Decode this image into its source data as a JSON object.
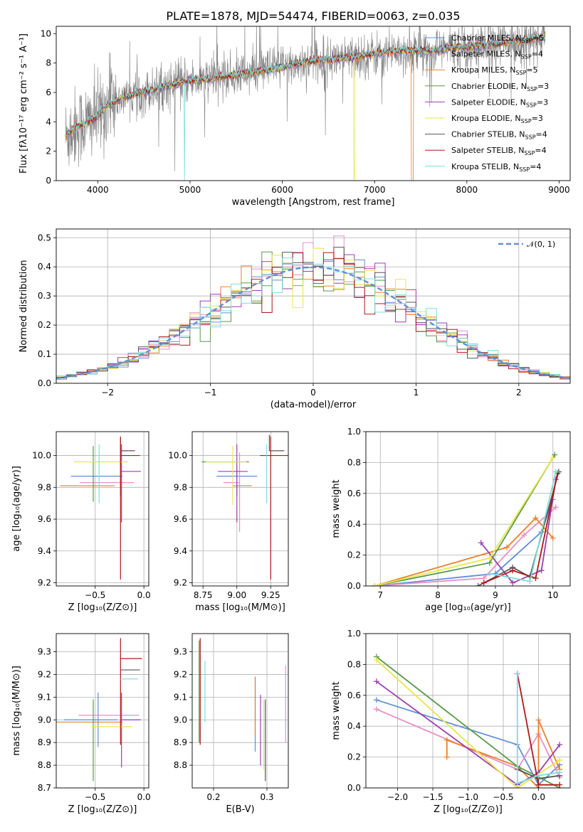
{
  "figure": {
    "title": "PLATE=1878, MJD=54474, FIBERID=0063, z=0.035"
  },
  "palette": {
    "chabrier_miles": "#5f8fd6",
    "salpeter_miles": "#e88fc6",
    "kroupa_miles": "#e8802a",
    "chabrier_elodie": "#5a9a4a",
    "salpeter_elodie": "#9b3fb0",
    "kroupa_elodie": "#e6e84a",
    "chabrier_stelib": "#555555",
    "salpeter_stelib": "#b01818",
    "kroupa_stelib": "#7fdcdc",
    "data": "#808080",
    "normal": "#5f8fd6",
    "grid": "#b0b0b0"
  },
  "chart_data": [
    {
      "id": "spectrum",
      "type": "line",
      "title": "PLATE=1878, MJD=54474, FIBERID=0063, z=0.035",
      "xlabel": "wavelength [Angstrom, rest frame]",
      "ylabel": "Flux [fλ10⁻¹⁷ erg cm⁻² s⁻¹ A⁻¹]",
      "xlim": [
        3550,
        9120
      ],
      "ylim": [
        0,
        10.5
      ],
      "xticks": [
        4000,
        5000,
        6000,
        7000,
        8000,
        9000
      ],
      "yticks": [
        0,
        2,
        4,
        6,
        8,
        10
      ],
      "grid": false,
      "legend_position": "top-right",
      "continuum": {
        "x": [
          3650,
          3750,
          3900,
          4000,
          4100,
          4200,
          4400,
          4600,
          4800,
          5000,
          5200,
          5400,
          5600,
          5800,
          6000,
          6200,
          6400,
          6600,
          6800,
          7000,
          7200,
          7400,
          7600,
          7800,
          8000,
          8200,
          8400,
          8600,
          8800,
          8850
        ],
        "y": [
          3.0,
          3.6,
          4.0,
          4.4,
          5.1,
          5.4,
          5.9,
          6.2,
          6.5,
          6.8,
          6.9,
          7.1,
          7.3,
          7.5,
          7.7,
          8.0,
          8.2,
          8.3,
          8.4,
          8.6,
          8.8,
          8.9,
          8.8,
          9.0,
          9.1,
          9.2,
          9.4,
          9.5,
          9.7,
          9.8
        ]
      },
      "dropouts": [
        {
          "series": "Kroupa STELIB",
          "x": 4940
        },
        {
          "series": "Kroupa ELODIE",
          "x": 6780
        },
        {
          "series": "Kroupa MILES",
          "x": 7400
        }
      ],
      "series": [
        {
          "name": "Chabrier MILES, N",
          "sub": "SSP",
          "suffix": "=5",
          "key": "chabrier_miles"
        },
        {
          "name": "Salpeter MILES, N",
          "sub": "SSP",
          "suffix": "=4",
          "key": "salpeter_miles"
        },
        {
          "name": "Kroupa MILES, N",
          "sub": "SSP",
          "suffix": "=5",
          "key": "kroupa_miles"
        },
        {
          "name": "Chabrier ELODIE, N",
          "sub": "SSP",
          "suffix": "=3",
          "key": "chabrier_elodie"
        },
        {
          "name": "Salpeter ELODIE, N",
          "sub": "SSP",
          "suffix": "=3",
          "key": "salpeter_elodie"
        },
        {
          "name": "Kroupa ELODIE, N",
          "sub": "SSP",
          "suffix": "=3",
          "key": "kroupa_elodie"
        },
        {
          "name": "Chabrier STELIB, N",
          "sub": "SSP",
          "suffix": "=4",
          "key": "chabrier_stelib"
        },
        {
          "name": "Salpeter STELIB, N",
          "sub": "SSP",
          "suffix": "=4",
          "key": "salpeter_stelib"
        },
        {
          "name": "Kroupa STELIB, N",
          "sub": "SSP",
          "suffix": "=4",
          "key": "kroupa_stelib"
        }
      ]
    },
    {
      "id": "residuals",
      "type": "histogram",
      "xlabel": "(data-model)/error",
      "ylabel": "Normed distribution",
      "xlim": [
        -2.5,
        2.5
      ],
      "ylim": [
        0,
        0.53
      ],
      "xticks": [
        -2,
        -1,
        0,
        1,
        2
      ],
      "yticks": [
        0.0,
        0.1,
        0.2,
        0.3,
        0.4,
        0.5
      ],
      "grid": true,
      "legend": "𝒩(0, 1)",
      "legend_position": "top-right",
      "bin_edges_range": [
        -2.5,
        2.5
      ],
      "n_bins": 50
    },
    {
      "id": "age-vs-z",
      "type": "errorbar",
      "xlabel": "Z [log₁₀(Z/Z⊙)]",
      "ylabel": "age  [log₁₀(age/yr)]",
      "xlim": [
        -0.9,
        0.05
      ],
      "ylim": [
        9.18,
        10.15
      ],
      "xticks": [
        -0.5,
        0.0
      ],
      "yticks": [
        9.2,
        9.4,
        9.6,
        9.8,
        10.0
      ],
      "grid": true,
      "points": [
        {
          "key": "chabrier_miles",
          "x": -0.37,
          "xerr": [
            0.38,
            0.15
          ],
          "y": 9.87,
          "yerr": [
            0.0,
            0.0
          ]
        },
        {
          "key": "salpeter_miles",
          "x": -0.3,
          "xerr": [
            0.36,
            0.2
          ],
          "y": 9.83,
          "yerr": [
            0.0,
            0.0
          ]
        },
        {
          "key": "kroupa_miles",
          "x": -0.48,
          "xerr": [
            0.38,
            0.18
          ],
          "y": 9.81,
          "yerr": [
            0.0,
            0.0
          ]
        },
        {
          "key": "chabrier_elodie",
          "x": -0.52,
          "xerr": [
            0.0,
            0.0
          ],
          "y": 9.96,
          "yerr": [
            0.25,
            0.1
          ]
        },
        {
          "key": "salpeter_elodie",
          "x": -0.23,
          "xerr": [
            0.0,
            0.2
          ],
          "y": 9.9,
          "yerr": [
            0.32,
            0.17
          ]
        },
        {
          "key": "kroupa_elodie",
          "x": -0.42,
          "xerr": [
            0.3,
            0.26
          ],
          "y": 9.96,
          "yerr": [
            0.0,
            0.0
          ]
        },
        {
          "key": "chabrier_stelib",
          "x": -0.24,
          "xerr": [
            0.0,
            0.15
          ],
          "y": 10.03,
          "yerr": [
            0.28,
            0.08
          ]
        },
        {
          "key": "salpeter_stelib",
          "x": -0.24,
          "xerr": [
            0.0,
            0.2
          ],
          "y": 10.0,
          "yerr": [
            0.78,
            0.12
          ]
        },
        {
          "key": "kroupa_stelib",
          "x": -0.46,
          "xerr": [
            0.0,
            0.0
          ],
          "y": 9.97,
          "yerr": [
            0.27,
            0.1
          ]
        }
      ]
    },
    {
      "id": "age-vs-mass",
      "type": "errorbar",
      "xlabel": "mass [log₁₀(M/M⊙)]",
      "ylabel": "",
      "xlim": [
        8.67,
        9.38
      ],
      "ylim": [
        9.18,
        10.15
      ],
      "xticks": [
        8.75,
        9.0,
        9.25
      ],
      "yticks": [
        9.2,
        9.4,
        9.6,
        9.8,
        10.0
      ],
      "grid": true,
      "points": [
        {
          "key": "chabrier_miles",
          "x": 9.0,
          "xerr": [
            0.15,
            0.15
          ],
          "y": 9.87,
          "yerr": [
            0.12,
            0.05
          ]
        },
        {
          "key": "salpeter_miles",
          "x": 9.02,
          "xerr": [
            0.12,
            0.0
          ],
          "y": 9.83,
          "yerr": [
            0.31,
            0.19
          ]
        },
        {
          "key": "kroupa_miles",
          "x": 8.97,
          "xerr": [
            0.0,
            0.14
          ],
          "y": 9.81,
          "yerr": [
            0.0,
            0.0
          ]
        },
        {
          "key": "chabrier_elodie",
          "x": 8.94,
          "xerr": [
            0.2,
            0.15
          ],
          "y": 9.96,
          "yerr": [
            0.0,
            0.0
          ]
        },
        {
          "key": "salpeter_elodie",
          "x": 9.0,
          "xerr": [
            0.14,
            0.08
          ],
          "y": 9.9,
          "yerr": [
            0.32,
            0.17
          ]
        },
        {
          "key": "kroupa_elodie",
          "x": 8.97,
          "xerr": [
            0.2,
            0.1
          ],
          "y": 9.96,
          "yerr": [
            0.27,
            0.1
          ]
        },
        {
          "key": "chabrier_stelib",
          "x": 9.24,
          "xerr": [
            0.0,
            0.11
          ],
          "y": 10.03,
          "yerr": [
            0.0,
            0.1
          ]
        },
        {
          "key": "salpeter_stelib",
          "x": 9.25,
          "xerr": [
            0.08,
            0.13
          ],
          "y": 10.0,
          "yerr": [
            0.78,
            0.12
          ]
        },
        {
          "key": "kroupa_stelib",
          "x": 9.22,
          "xerr": [
            0.0,
            0.0
          ],
          "y": 9.97,
          "yerr": [
            0.27,
            0.1
          ]
        }
      ]
    },
    {
      "id": "weight-vs-age",
      "type": "line",
      "xlabel": "age  [log₁₀(age/yr)]",
      "ylabel": "mass weight",
      "xlim": [
        6.75,
        10.3
      ],
      "ylim": [
        0,
        1.0
      ],
      "xticks": [
        7,
        8,
        9,
        10
      ],
      "yticks": [
        0.0,
        0.2,
        0.4,
        0.6,
        0.8,
        1.0
      ],
      "grid": true,
      "series": [
        {
          "key": "chabrier_miles",
          "x": [
            6.9,
            9.0,
            9.8,
            10.0
          ],
          "y": [
            0.0,
            0.08,
            0.35,
            0.56
          ]
        },
        {
          "key": "salpeter_miles",
          "x": [
            6.9,
            8.8,
            9.5,
            10.05
          ],
          "y": [
            0.0,
            0.05,
            0.33,
            0.51
          ]
        },
        {
          "key": "kroupa_miles",
          "x": [
            6.9,
            9.2,
            9.7,
            10.0
          ],
          "y": [
            0.0,
            0.25,
            0.44,
            0.31
          ]
        },
        {
          "key": "chabrier_elodie",
          "x": [
            6.9,
            8.9,
            10.03
          ],
          "y": [
            0.0,
            0.15,
            0.85
          ]
        },
        {
          "key": "salpeter_elodie",
          "x": [
            8.75,
            9.3,
            9.8,
            10.05
          ],
          "y": [
            0.28,
            0.02,
            0.1,
            0.69
          ]
        },
        {
          "key": "kroupa_elodie",
          "x": [
            6.9,
            8.9,
            10.0
          ],
          "y": [
            0.0,
            0.18,
            0.83
          ]
        },
        {
          "key": "chabrier_stelib",
          "x": [
            8.7,
            9.3,
            9.6,
            10.1
          ],
          "y": [
            0.0,
            0.12,
            0.06,
            0.74
          ]
        },
        {
          "key": "salpeter_stelib",
          "x": [
            8.8,
            9.3,
            9.7,
            10.08
          ],
          "y": [
            0.02,
            0.1,
            0.05,
            0.73
          ]
        },
        {
          "key": "kroupa_stelib",
          "x": [
            8.9,
            9.6,
            10.05
          ],
          "y": [
            0.08,
            0.03,
            0.74
          ]
        }
      ]
    },
    {
      "id": "mass-vs-z",
      "type": "errorbar",
      "xlabel": "Z [log₁₀(Z/Z⊙)]",
      "ylabel": "mass [log₁₀(M/M⊙)]",
      "xlim": [
        -0.9,
        0.05
      ],
      "ylim": [
        8.7,
        9.38
      ],
      "xticks": [
        -0.5,
        0.0
      ],
      "yticks": [
        8.7,
        8.8,
        8.9,
        9.0,
        9.1,
        9.2,
        9.3
      ],
      "grid": true,
      "points": [
        {
          "key": "chabrier_miles",
          "x": -0.47,
          "xerr": [
            0.35,
            0.2
          ],
          "y": 9.0,
          "yerr": [
            0.12,
            0.12
          ]
        },
        {
          "key": "salpeter_miles",
          "x": -0.29,
          "xerr": [
            0.38,
            0.24
          ],
          "y": 9.02,
          "yerr": [
            0.0,
            0.0
          ]
        },
        {
          "key": "kroupa_miles",
          "x": -0.52,
          "xerr": [
            0.38,
            0.3
          ],
          "y": 8.99,
          "yerr": [
            0.0,
            0.0
          ]
        },
        {
          "key": "chabrier_elodie",
          "x": -0.52,
          "xerr": [
            0.0,
            0.0
          ],
          "y": 8.94,
          "yerr": [
            0.21,
            0.15
          ]
        },
        {
          "key": "salpeter_elodie",
          "x": -0.23,
          "xerr": [
            0.0,
            0.2
          ],
          "y": 9.0,
          "yerr": [
            0.21,
            0.12
          ]
        },
        {
          "key": "kroupa_elodie",
          "x": -0.42,
          "xerr": [
            0.12,
            0.3
          ],
          "y": 8.97,
          "yerr": [
            0.0,
            0.0
          ]
        },
        {
          "key": "chabrier_stelib",
          "x": -0.24,
          "xerr": [
            0.0,
            0.2
          ],
          "y": 9.22,
          "yerr": [
            0.0,
            0.0
          ]
        },
        {
          "key": "salpeter_stelib",
          "x": -0.24,
          "xerr": [
            0.0,
            0.22
          ],
          "y": 9.27,
          "yerr": [
            0.38,
            0.09
          ]
        },
        {
          "key": "kroupa_stelib",
          "x": -0.24,
          "xerr": [
            0.0,
            0.18
          ],
          "y": 9.18,
          "yerr": [
            0.0,
            0.0
          ]
        }
      ]
    },
    {
      "id": "mass-vs-ebv",
      "type": "errorbar",
      "xlabel": "E(B-V)",
      "ylabel": "",
      "xlim": [
        0.16,
        0.34
      ],
      "ylim": [
        8.7,
        9.38
      ],
      "xticks": [
        0.2,
        0.3
      ],
      "yticks": [
        8.8,
        8.9,
        9.0,
        9.1,
        9.2,
        9.3
      ],
      "grid": true,
      "points": [
        {
          "key": "chabrier_miles",
          "x": 0.278,
          "y": 9.03,
          "yerr": [
            0.17,
            0.16
          ]
        },
        {
          "key": "salpeter_miles",
          "x": 0.335,
          "y": 9.07,
          "yerr": [
            0.17,
            0.17
          ]
        },
        {
          "key": "kroupa_miles",
          "x": 0.278,
          "y": 9.06,
          "yerr": [
            0.13,
            0.13
          ]
        },
        {
          "key": "chabrier_elodie",
          "x": 0.173,
          "y": 9.12,
          "yerr": [
            0.22,
            0.23
          ]
        },
        {
          "key": "salpeter_elodie",
          "x": 0.288,
          "y": 8.98,
          "yerr": [
            0.18,
            0.13
          ]
        },
        {
          "key": "kroupa_elodie",
          "x": 0.294,
          "y": 8.95,
          "yerr": [
            0.17,
            0.14
          ]
        },
        {
          "key": "chabrier_stelib",
          "x": 0.297,
          "y": 8.91,
          "yerr": [
            0.18,
            0.18
          ]
        },
        {
          "key": "salpeter_stelib",
          "x": 0.175,
          "y": 9.12,
          "yerr": [
            0.23,
            0.24
          ]
        },
        {
          "key": "kroupa_stelib",
          "x": 0.184,
          "y": 9.12,
          "yerr": [
            0.13,
            0.14
          ]
        }
      ]
    },
    {
      "id": "weight-vs-z",
      "type": "line",
      "xlabel": "Z [log₁₀(Z/Z⊙)]",
      "ylabel": "mass weight",
      "xlim": [
        -2.45,
        0.45
      ],
      "ylim": [
        0,
        1.0
      ],
      "xticks": [
        -2.0,
        -1.5,
        -1.0,
        -0.5,
        0.0
      ],
      "yticks": [
        0.0,
        0.2,
        0.4,
        0.6,
        0.8,
        1.0
      ],
      "grid": true,
      "series": [
        {
          "key": "chabrier_miles",
          "x": [
            -2.3,
            -0.3,
            0.0,
            0.3
          ],
          "y": [
            0.57,
            0.28,
            0.02,
            0.15
          ]
        },
        {
          "key": "salpeter_miles",
          "x": [
            -2.3,
            -0.3,
            0.0,
            0.3
          ],
          "y": [
            0.51,
            0.12,
            0.35,
            0.07
          ]
        },
        {
          "key": "kroupa_miles",
          "x": [
            -1.3,
            -1.3,
            -0.3,
            0.0,
            0.0,
            0.3
          ],
          "y": [
            0.2,
            0.31,
            0.14,
            0.0,
            0.44,
            0.12
          ]
        },
        {
          "key": "chabrier_elodie",
          "x": [
            -2.3,
            -0.3,
            0.3
          ],
          "y": [
            0.85,
            0.14,
            0.0
          ]
        },
        {
          "key": "salpeter_elodie",
          "x": [
            -2.3,
            -0.3,
            0.0,
            0.3
          ],
          "y": [
            0.69,
            0.02,
            0.1,
            0.28
          ]
        },
        {
          "key": "kroupa_elodie",
          "x": [
            -2.3,
            -0.3,
            0.3
          ],
          "y": [
            0.83,
            0.0,
            0.18
          ]
        },
        {
          "key": "chabrier_stelib",
          "x": [
            -0.3,
            0.0,
            0.3
          ],
          "y": [
            0.12,
            0.06,
            0.08
          ]
        },
        {
          "key": "salpeter_stelib",
          "x": [
            -0.3,
            0.0,
            0.3
          ],
          "y": [
            0.74,
            0.02,
            0.02
          ]
        },
        {
          "key": "kroupa_stelib",
          "x": [
            -0.3,
            -0.3,
            0.0,
            0.3
          ],
          "y": [
            0.74,
            0.03,
            0.08,
            0.1
          ]
        }
      ]
    }
  ]
}
